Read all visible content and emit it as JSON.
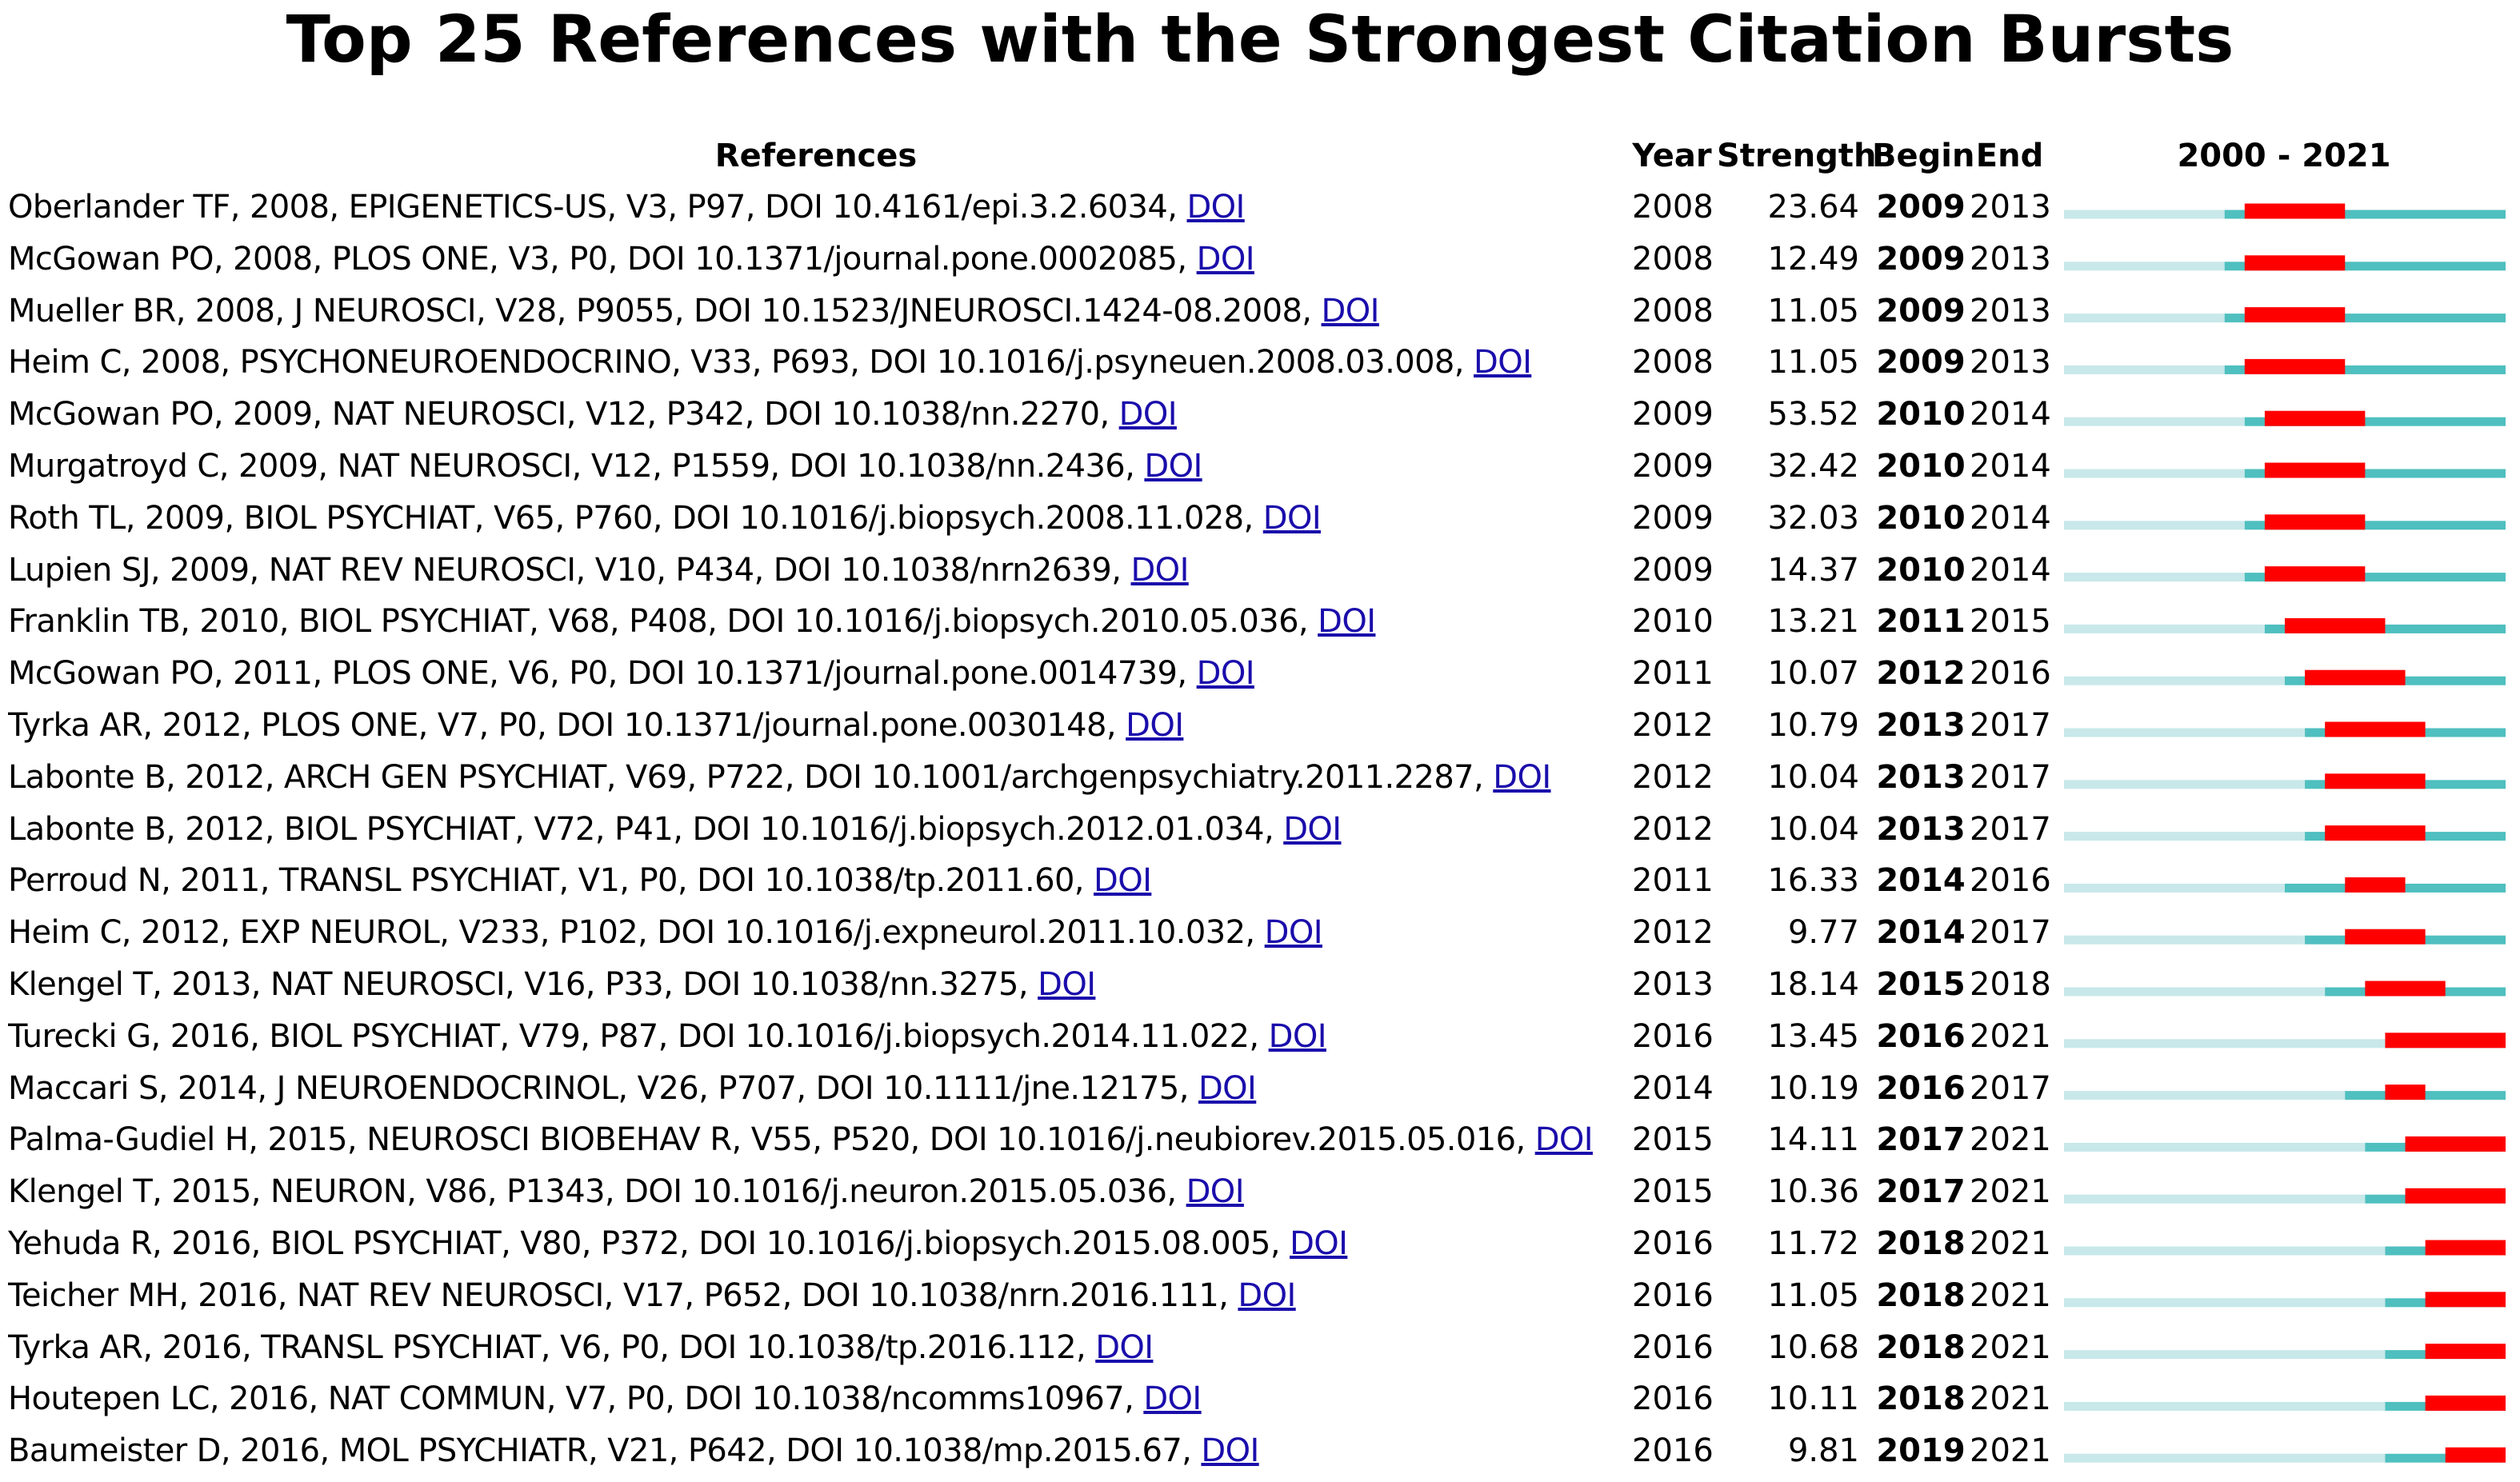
{
  "page": {
    "title": "Top 25 References with the Strongest Citation Bursts"
  },
  "columns": {
    "references": "References",
    "year": "Year",
    "strength": "Strength",
    "begin": "Begin",
    "end": "End",
    "range": "2000 - 2021"
  },
  "colors": {
    "burst": "#ff0000",
    "active": "#4fbfbf",
    "inactive": "#c8e8ea"
  },
  "chart_data": {
    "type": "table",
    "title": "Top 25 References with the Strongest Citation Bursts",
    "timeline_range": [
      2000,
      2021
    ],
    "rows": [
      {
        "ref": "Oberlander TF, 2008, EPIGENETICS-US, V3, P97, DOI 10.4161/epi.3.2.6034, ",
        "doi": "DOI",
        "year": 2008,
        "strength": "23.64",
        "begin": 2009,
        "end": 2013
      },
      {
        "ref": "McGowan PO, 2008, PLOS ONE, V3, P0, DOI 10.1371/journal.pone.0002085, ",
        "doi": "DOI",
        "year": 2008,
        "strength": "12.49",
        "begin": 2009,
        "end": 2013
      },
      {
        "ref": "Mueller BR, 2008, J NEUROSCI, V28, P9055, DOI 10.1523/JNEUROSCI.1424-08.2008, ",
        "doi": "DOI",
        "year": 2008,
        "strength": "11.05",
        "begin": 2009,
        "end": 2013
      },
      {
        "ref": "Heim C, 2008, PSYCHONEUROENDOCRINO, V33, P693, DOI 10.1016/j.psyneuen.2008.03.008, ",
        "doi": "DOI",
        "year": 2008,
        "strength": "11.05",
        "begin": 2009,
        "end": 2013
      },
      {
        "ref": "McGowan PO, 2009, NAT NEUROSCI, V12, P342, DOI 10.1038/nn.2270, ",
        "doi": "DOI",
        "year": 2009,
        "strength": "53.52",
        "begin": 2010,
        "end": 2014
      },
      {
        "ref": "Murgatroyd C, 2009, NAT NEUROSCI, V12, P1559, DOI 10.1038/nn.2436, ",
        "doi": "DOI",
        "year": 2009,
        "strength": "32.42",
        "begin": 2010,
        "end": 2014
      },
      {
        "ref": "Roth TL, 2009, BIOL PSYCHIAT, V65, P760, DOI 10.1016/j.biopsych.2008.11.028, ",
        "doi": "DOI",
        "year": 2009,
        "strength": "32.03",
        "begin": 2010,
        "end": 2014
      },
      {
        "ref": "Lupien SJ, 2009, NAT REV NEUROSCI, V10, P434, DOI 10.1038/nrn2639, ",
        "doi": "DOI",
        "year": 2009,
        "strength": "14.37",
        "begin": 2010,
        "end": 2014
      },
      {
        "ref": "Franklin TB, 2010, BIOL PSYCHIAT, V68, P408, DOI 10.1016/j.biopsych.2010.05.036, ",
        "doi": "DOI",
        "year": 2010,
        "strength": "13.21",
        "begin": 2011,
        "end": 2015
      },
      {
        "ref": "McGowan PO, 2011, PLOS ONE, V6, P0, DOI 10.1371/journal.pone.0014739, ",
        "doi": "DOI",
        "year": 2011,
        "strength": "10.07",
        "begin": 2012,
        "end": 2016
      },
      {
        "ref": "Tyrka AR, 2012, PLOS ONE, V7, P0, DOI 10.1371/journal.pone.0030148, ",
        "doi": "DOI",
        "year": 2012,
        "strength": "10.79",
        "begin": 2013,
        "end": 2017
      },
      {
        "ref": "Labonte B, 2012, ARCH GEN PSYCHIAT, V69, P722, DOI 10.1001/archgenpsychiatry.2011.2287, ",
        "doi": "DOI",
        "year": 2012,
        "strength": "10.04",
        "begin": 2013,
        "end": 2017
      },
      {
        "ref": "Labonte B, 2012, BIOL PSYCHIAT, V72, P41, DOI 10.1016/j.biopsych.2012.01.034, ",
        "doi": "DOI",
        "year": 2012,
        "strength": "10.04",
        "begin": 2013,
        "end": 2017
      },
      {
        "ref": "Perroud N, 2011, TRANSL PSYCHIAT, V1, P0, DOI 10.1038/tp.2011.60, ",
        "doi": "DOI",
        "year": 2011,
        "strength": "16.33",
        "begin": 2014,
        "end": 2016
      },
      {
        "ref": "Heim C, 2012, EXP NEUROL, V233, P102, DOI 10.1016/j.expneurol.2011.10.032, ",
        "doi": "DOI",
        "year": 2012,
        "strength": "9.77",
        "begin": 2014,
        "end": 2017
      },
      {
        "ref": "Klengel T, 2013, NAT NEUROSCI, V16, P33, DOI 10.1038/nn.3275, ",
        "doi": "DOI",
        "year": 2013,
        "strength": "18.14",
        "begin": 2015,
        "end": 2018
      },
      {
        "ref": "Turecki G, 2016, BIOL PSYCHIAT, V79, P87, DOI 10.1016/j.biopsych.2014.11.022, ",
        "doi": "DOI",
        "year": 2016,
        "strength": "13.45",
        "begin": 2016,
        "end": 2021
      },
      {
        "ref": "Maccari S, 2014, J NEUROENDOCRINOL, V26, P707, DOI 10.1111/jne.12175, ",
        "doi": "DOI",
        "year": 2014,
        "strength": "10.19",
        "begin": 2016,
        "end": 2017
      },
      {
        "ref": "Palma-Gudiel H, 2015, NEUROSCI BIOBEHAV R, V55, P520, DOI 10.1016/j.neubiorev.2015.05.016, ",
        "doi": "DOI",
        "year": 2015,
        "strength": "14.11",
        "begin": 2017,
        "end": 2021
      },
      {
        "ref": "Klengel T, 2015, NEURON, V86, P1343, DOI 10.1016/j.neuron.2015.05.036, ",
        "doi": "DOI",
        "year": 2015,
        "strength": "10.36",
        "begin": 2017,
        "end": 2021
      },
      {
        "ref": "Yehuda R, 2016, BIOL PSYCHIAT, V80, P372, DOI 10.1016/j.biopsych.2015.08.005, ",
        "doi": "DOI",
        "year": 2016,
        "strength": "11.72",
        "begin": 2018,
        "end": 2021
      },
      {
        "ref": "Teicher MH, 2016, NAT REV NEUROSCI, V17, P652, DOI 10.1038/nrn.2016.111, ",
        "doi": "DOI",
        "year": 2016,
        "strength": "11.05",
        "begin": 2018,
        "end": 2021
      },
      {
        "ref": "Tyrka AR, 2016, TRANSL PSYCHIAT, V6, P0, DOI 10.1038/tp.2016.112, ",
        "doi": "DOI",
        "year": 2016,
        "strength": "10.68",
        "begin": 2018,
        "end": 2021
      },
      {
        "ref": "Houtepen LC, 2016, NAT COMMUN, V7, P0, DOI 10.1038/ncomms10967, ",
        "doi": "DOI",
        "year": 2016,
        "strength": "10.11",
        "begin": 2018,
        "end": 2021
      },
      {
        "ref": "Baumeister D, 2016, MOL PSYCHIATR, V21, P642, DOI 10.1038/mp.2015.67, ",
        "doi": "DOI",
        "year": 2016,
        "strength": "9.81",
        "begin": 2019,
        "end": 2021
      }
    ]
  }
}
